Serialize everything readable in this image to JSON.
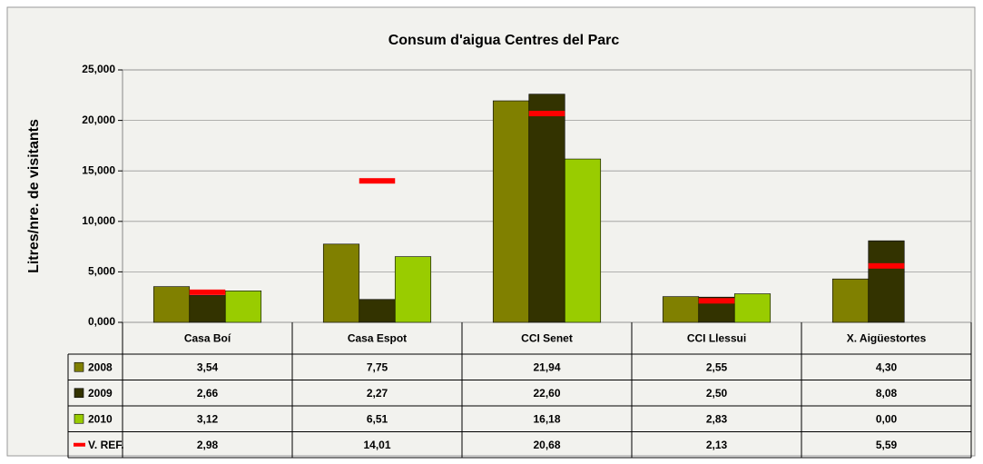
{
  "chart_data": {
    "type": "bar",
    "title": "Consum d'aigua Centres del Parc",
    "y_label": "Litres/nre. de visitants",
    "categories": [
      "Casa Boí",
      "Casa Espot",
      "CCI Senet",
      "CCI Llessui",
      "X. Aigüestortes"
    ],
    "series": [
      {
        "name": "2008",
        "color": "#808000",
        "values": [
          3.54,
          7.75,
          21.94,
          2.55,
          4.3
        ],
        "value_labels": [
          "3,54",
          "7,75",
          "21,94",
          "2,55",
          "4,30"
        ]
      },
      {
        "name": "2009",
        "color": "#333300",
        "values": [
          2.66,
          2.27,
          22.6,
          2.5,
          8.08
        ],
        "value_labels": [
          "2,66",
          "2,27",
          "22,60",
          "2,50",
          "8,08"
        ]
      },
      {
        "name": "2010",
        "color": "#99cc00",
        "values": [
          3.12,
          6.51,
          16.18,
          2.83,
          0.0
        ],
        "value_labels": [
          "3,12",
          "6,51",
          "16,18",
          "2,83",
          "0,00"
        ]
      },
      {
        "name": "V. REF.",
        "color": "#ff0000",
        "marker": "dash",
        "values": [
          2.98,
          14.01,
          20.68,
          2.13,
          5.59
        ],
        "value_labels": [
          "2,98",
          "14,01",
          "20,68",
          "2,13",
          "5,59"
        ]
      }
    ],
    "ylim": [
      0,
      25
    ],
    "yticks": [
      {
        "value": 0,
        "label": "0,000"
      },
      {
        "value": 5,
        "label": "5,000"
      },
      {
        "value": 10,
        "label": "10,000"
      },
      {
        "value": 15,
        "label": "15,000"
      },
      {
        "value": 20,
        "label": "20,000"
      },
      {
        "value": 25,
        "label": "25,000"
      }
    ],
    "grid": true,
    "data_table": true
  }
}
